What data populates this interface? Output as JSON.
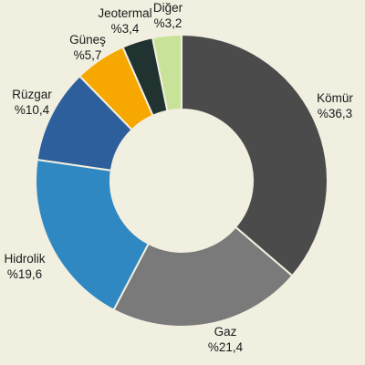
{
  "chart_data": {
    "type": "pie",
    "style": "donut",
    "title": "",
    "slices": [
      {
        "name": "Kömür",
        "value": 36.3,
        "label": "%36,3",
        "color": "#4b4b4b"
      },
      {
        "name": "Gaz",
        "value": 21.4,
        "label": "%21,4",
        "color": "#7a7a7a"
      },
      {
        "name": "Hidrolik",
        "value": 19.6,
        "label": "%19,6",
        "color": "#2f88c2"
      },
      {
        "name": "Rüzgar",
        "value": 10.4,
        "label": "%10,4",
        "color": "#2d5f9c"
      },
      {
        "name": "Güneş",
        "value": 5.7,
        "label": "%5,7",
        "color": "#f7a800"
      },
      {
        "name": "Jeotermal",
        "value": 3.4,
        "label": "%3,4",
        "color": "#203331"
      },
      {
        "name": "Diğer",
        "value": 3.2,
        "label": "%3,2",
        "color": "#c9e29a"
      }
    ],
    "start_angle": "12 o'clock",
    "direction": "clockwise",
    "legend": "none",
    "background_color": "#f1efe0",
    "slice_border_color": "#f1efe0"
  }
}
